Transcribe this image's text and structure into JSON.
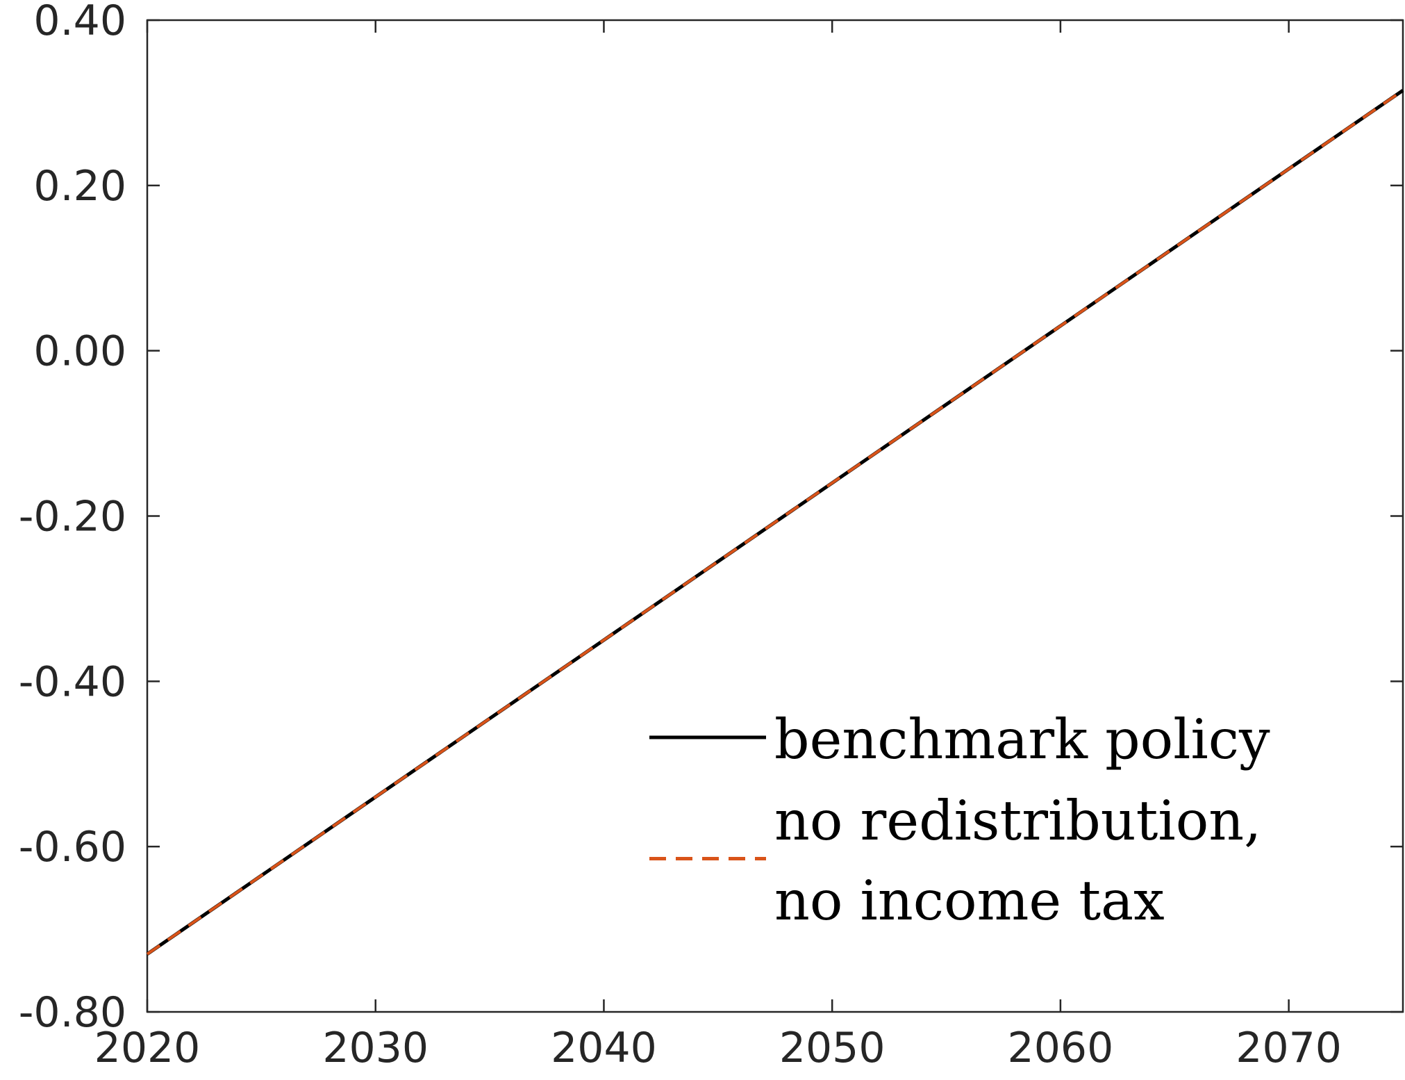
{
  "chart_data": {
    "type": "line",
    "title": "",
    "xlabel": "",
    "ylabel": "",
    "xlim": [
      2020,
      2075
    ],
    "ylim": [
      -0.8,
      0.4
    ],
    "x_ticks": [
      2020,
      2030,
      2040,
      2050,
      2060,
      2070
    ],
    "x_tick_labels": [
      "2020",
      "2030",
      "2040",
      "2050",
      "2060",
      "2070"
    ],
    "y_ticks": [
      -0.8,
      -0.6,
      -0.4,
      -0.2,
      0.0,
      0.2,
      0.4
    ],
    "y_tick_labels": [
      "-0.80",
      "-0.60",
      "-0.40",
      "-0.20",
      "0.00",
      "0.20",
      "0.40"
    ],
    "grid": false,
    "legend_position": "bottom-right",
    "series": [
      {
        "name": "benchmark policy",
        "style": "solid",
        "color": "#000000",
        "x": [
          2020,
          2030,
          2040,
          2050,
          2060,
          2070,
          2075
        ],
        "y": [
          -0.73,
          -0.54,
          -0.35,
          -0.16,
          0.03,
          0.22,
          0.315
        ]
      },
      {
        "name": "no redistribution,\nno income tax",
        "style": "dashed",
        "color": "#D95319",
        "x": [
          2020,
          2030,
          2040,
          2050,
          2060,
          2070,
          2075
        ],
        "y": [
          -0.73,
          -0.54,
          -0.35,
          -0.16,
          0.03,
          0.22,
          0.315
        ]
      }
    ],
    "legend": {
      "entries": [
        {
          "lines": [
            "benchmark policy"
          ]
        },
        {
          "lines": [
            "no redistribution,",
            "no income tax"
          ]
        }
      ]
    }
  }
}
